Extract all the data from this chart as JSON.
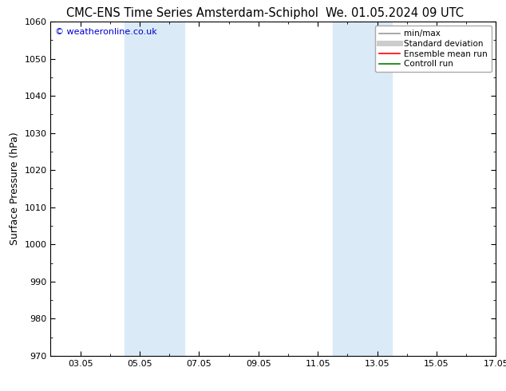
{
  "title_left": "CMC-ENS Time Series Amsterdam-Schiphol",
  "title_right": "We. 01.05.2024 09 UTC",
  "ylabel": "Surface Pressure (hPa)",
  "ylim": [
    970,
    1060
  ],
  "yticks": [
    970,
    980,
    990,
    1000,
    1010,
    1020,
    1030,
    1040,
    1050,
    1060
  ],
  "xlim": [
    1.0,
    16.0
  ],
  "xtick_labels": [
    "03.05",
    "05.05",
    "07.05",
    "09.05",
    "11.05",
    "13.05",
    "15.05",
    "17.05"
  ],
  "xtick_positions": [
    2,
    4,
    6,
    8,
    10,
    12,
    14,
    16
  ],
  "shade_bands": [
    {
      "xmin": 3.5,
      "xmax": 5.5
    },
    {
      "xmin": 10.5,
      "xmax": 12.5
    }
  ],
  "shade_color": "#daeaf7",
  "copyright_text": "© weatheronline.co.uk",
  "copyright_color": "#0000cc",
  "legend_items": [
    {
      "label": "min/max",
      "color": "#999999",
      "lw": 1.2,
      "ls": "-"
    },
    {
      "label": "Standard deviation",
      "color": "#cccccc",
      "lw": 5,
      "ls": "-"
    },
    {
      "label": "Ensemble mean run",
      "color": "#ff0000",
      "lw": 1.2,
      "ls": "-"
    },
    {
      "label": "Controll run",
      "color": "#008000",
      "lw": 1.2,
      "ls": "-"
    }
  ],
  "bg_color": "#ffffff",
  "title_fontsize": 10.5,
  "ylabel_fontsize": 9,
  "tick_fontsize": 8,
  "legend_fontsize": 7.5
}
